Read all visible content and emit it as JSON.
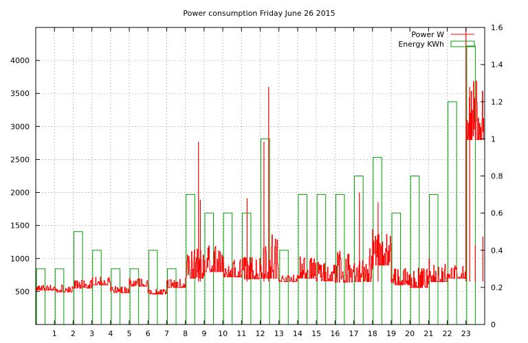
{
  "chart_data": {
    "type": "line",
    "title": "Power consumption Friday June 26 2015",
    "x_label": "",
    "y_label": "",
    "y2_label": "",
    "x_range": [
      0,
      24
    ],
    "y_range": [
      0,
      4500
    ],
    "y2_range": [
      0,
      1.6
    ],
    "x_ticks": [
      "1",
      "2",
      "3",
      "4",
      "5",
      "6",
      "7",
      "8",
      "9",
      "10",
      "11",
      "12",
      "13",
      "14",
      "15",
      "16",
      "17",
      "18",
      "19",
      "20",
      "21",
      "22",
      "23"
    ],
    "y_ticks": [
      500,
      1000,
      1500,
      2000,
      2500,
      3000,
      3500,
      4000
    ],
    "y2_ticks": [
      "0",
      "0.2",
      "0.4",
      "0.6",
      "0.8",
      "1",
      "1.2",
      "1.4",
      "1.6"
    ],
    "grid": true,
    "legend_position": "top-right",
    "legend": [
      {
        "label": "Power W",
        "color": "#ff0000"
      },
      {
        "label": "Energy KWh",
        "color": "#00a000"
      }
    ],
    "series": [
      {
        "name": "Energy KWh",
        "axis": "y2",
        "style": "boxes",
        "color": "#00a000",
        "x": [
          0,
          1,
          2,
          3,
          4,
          5,
          6,
          7,
          8,
          9,
          10,
          11,
          12,
          13,
          14,
          15,
          16,
          17,
          18,
          19,
          20,
          21,
          22,
          23
        ],
        "values": [
          0.3,
          0.3,
          0.5,
          0.4,
          0.3,
          0.3,
          0.4,
          0.3,
          0.7,
          0.6,
          0.6,
          0.6,
          1.0,
          0.4,
          0.7,
          0.7,
          0.7,
          0.8,
          0.9,
          0.6,
          0.8,
          0.7,
          1.2,
          1.5
        ]
      },
      {
        "name": "Power W",
        "axis": "y",
        "style": "lines",
        "color": "#ff0000",
        "hourly_base": [
          520,
          490,
          550,
          600,
          480,
          580,
          460,
          560,
          700,
          800,
          720,
          690,
          700,
          650,
          700,
          660,
          640,
          650,
          900,
          600,
          560,
          650,
          700,
          2800
        ],
        "hourly_spread": [
          80,
          120,
          120,
          120,
          100,
          120,
          80,
          140,
          450,
          400,
          300,
          350,
          700,
          100,
          350,
          330,
          500,
          600,
          550,
          250,
          300,
          350,
          200,
          900
        ],
        "peaks": [
          {
            "x": 8.7,
            "y": 2770
          },
          {
            "x": 8.8,
            "y": 1890
          },
          {
            "x": 11.3,
            "y": 1910
          },
          {
            "x": 12.2,
            "y": 2770
          },
          {
            "x": 12.45,
            "y": 3600
          },
          {
            "x": 17.3,
            "y": 2000
          },
          {
            "x": 18.3,
            "y": 1850
          },
          {
            "x": 23.0,
            "y": 4500
          },
          {
            "x": 23.2,
            "y": 3600
          },
          {
            "x": 23.5,
            "y": 1200
          },
          {
            "x": 23.9,
            "y": 1330
          }
        ]
      }
    ]
  }
}
